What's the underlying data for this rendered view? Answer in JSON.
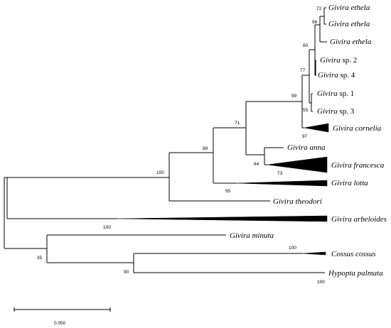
{
  "taxa": {
    "ethela_1": {
      "genus": "Givira",
      "rest": "ethela"
    },
    "ethela_2": {
      "genus": "Givira",
      "rest": "ethela"
    },
    "ethela_3": {
      "genus": "Givira",
      "rest": "ethela"
    },
    "sp2": {
      "genus": "Givira",
      "rest": "sp. 2"
    },
    "sp4": {
      "genus": "Givira",
      "rest": "sp. 4"
    },
    "sp1": {
      "genus": "Givira",
      "rest": "sp. 1"
    },
    "sp3": {
      "genus": "Givira",
      "rest": "sp. 3"
    },
    "cornelia": {
      "genus": "Givira",
      "rest": "cornelia"
    },
    "anna": {
      "genus": "Givira",
      "rest": "anna"
    },
    "francesca": {
      "genus": "Givira",
      "rest": "francesca"
    },
    "lotta": {
      "genus": "Givira",
      "rest": "lotta"
    },
    "theodori": {
      "genus": "Givira",
      "rest": "theodori"
    },
    "arbeloides": {
      "genus": "Givira",
      "rest": "arbeloides"
    },
    "minuta": {
      "genus": "Givira",
      "rest": "minuta"
    },
    "cossus": {
      "genus": "Cossus",
      "rest": "cossus"
    },
    "hypopta": {
      "genus": "Hypopta",
      "rest": "palmata"
    }
  },
  "support": {
    "s72": "72",
    "s96": "96",
    "s60": "60",
    "s77": "77",
    "s99": "99",
    "s55": "55",
    "s97": "97",
    "s71": "71",
    "s89": "89",
    "s84": "84",
    "s73": "73",
    "s100_root": "100",
    "s95": "95",
    "s100_arb": "100",
    "s35": "35",
    "s100_cossus": "100",
    "s90": "90",
    "s100_hyp": "100"
  },
  "scale_bar": {
    "label": "0.050"
  }
}
